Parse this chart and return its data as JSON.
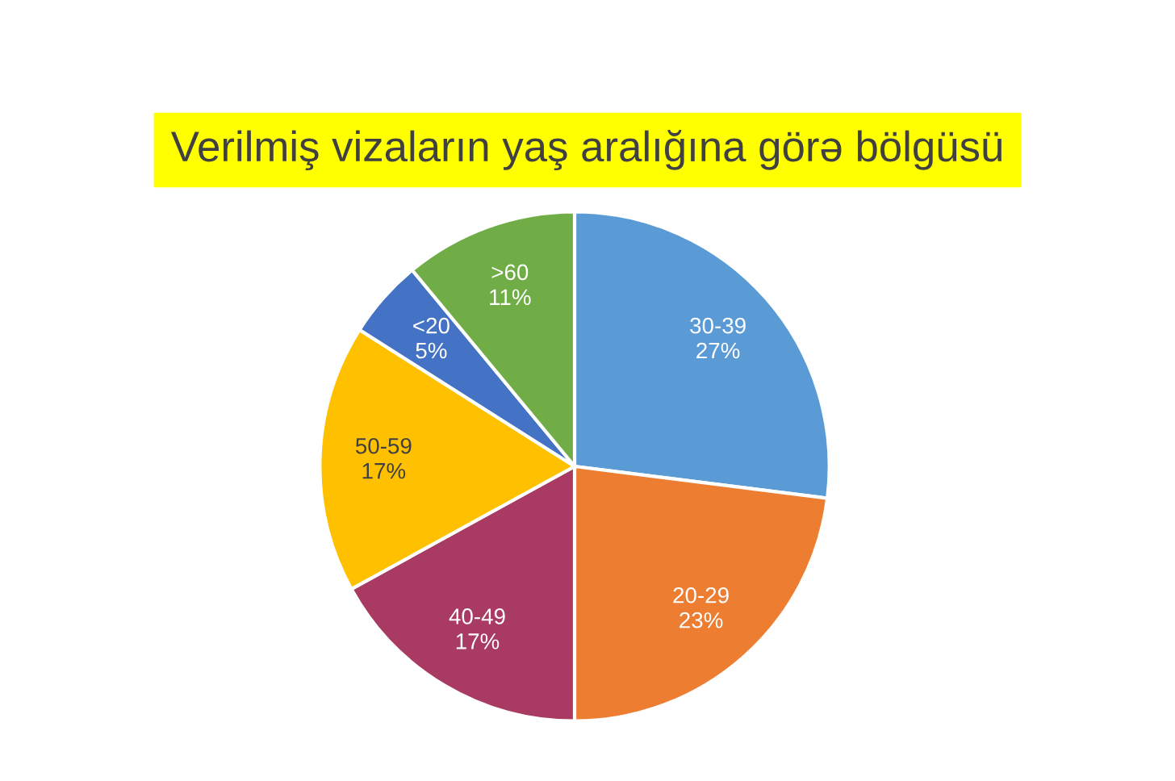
{
  "chart_data": {
    "type": "pie",
    "title": "Verilmiş vizaların yaş aralığına görə bölgüsü",
    "categories": [
      "30-39",
      "20-29",
      "40-49",
      "50-59",
      "<20",
      ">60"
    ],
    "values": [
      27,
      23,
      17,
      17,
      5,
      11
    ],
    "value_labels": [
      "27%",
      "23%",
      "17%",
      "17%",
      "5%",
      "11%"
    ],
    "colors": [
      "#5b9bd5",
      "#ed7d31",
      "#a93a62",
      "#ffc000",
      "#4472c4",
      "#70ad47"
    ],
    "legend": false
  }
}
